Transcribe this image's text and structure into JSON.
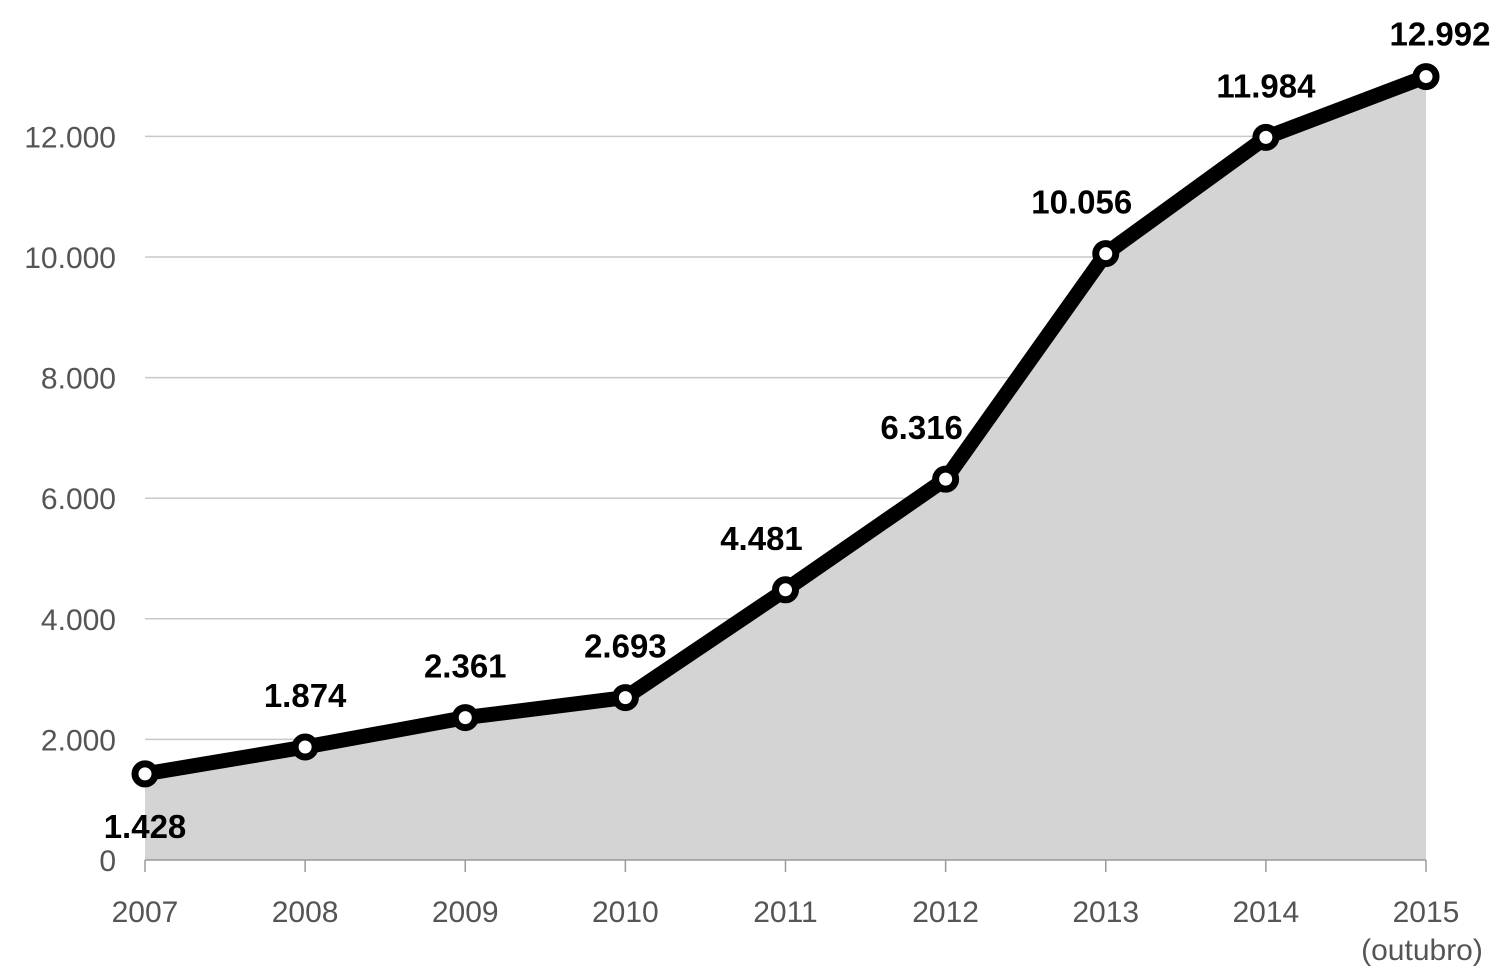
{
  "chart_data": {
    "type": "area",
    "categories": [
      "2007",
      "2008",
      "2009",
      "2010",
      "2011",
      "2012",
      "2013",
      "2014",
      "2015"
    ],
    "category_sublabels": [
      "",
      "",
      "",
      "",
      "",
      "",
      "",
      "",
      "(outubro)"
    ],
    "series": [
      {
        "values": [
          1428,
          1874,
          2361,
          2693,
          4481,
          6316,
          10056,
          11984,
          12992
        ],
        "data_labels": [
          "1.428",
          "1.874",
          "2.361",
          "2.693",
          "4.481",
          "6.316",
          "10.056",
          "11.984",
          "12.992"
        ]
      }
    ],
    "y_ticks": [
      0,
      2000,
      4000,
      6000,
      8000,
      10000,
      12000
    ],
    "y_tick_labels": [
      "0",
      "2.000",
      "4.000",
      "6.000",
      "8.000",
      "10.000",
      "12.000"
    ],
    "ylim": [
      0,
      13000
    ],
    "grid": true,
    "legend": "none",
    "colors": {
      "line": "#000000",
      "fill": "#d4d4d4",
      "marker_fill": "#ffffff"
    }
  }
}
